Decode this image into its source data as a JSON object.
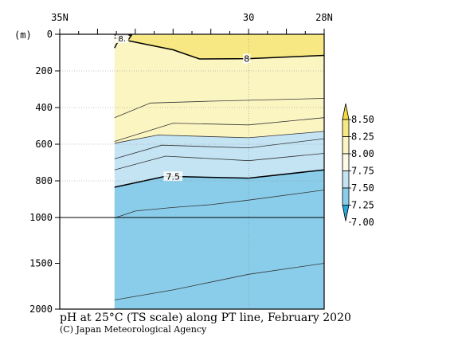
{
  "chart_data": {
    "type": "contour",
    "title": "pH at 25°C (TS scale) along PT line, February 2020",
    "credit": "(C) Japan Meteorological Agency",
    "y_unit": "(m)",
    "x_ticks": [
      {
        "value": 35,
        "label": "35N"
      },
      {
        "value": 30,
        "label": "30"
      },
      {
        "value": 28,
        "label": "28N"
      }
    ],
    "x_range": [
      35,
      28
    ],
    "y_ticks": [
      {
        "value": 0,
        "label": "0"
      },
      {
        "value": 200,
        "label": "200"
      },
      {
        "value": 400,
        "label": "400"
      },
      {
        "value": 600,
        "label": "600"
      },
      {
        "value": 800,
        "label": "800"
      },
      {
        "value": 1000,
        "label": "1000"
      },
      {
        "value": 1500,
        "label": "1500"
      },
      {
        "value": 2000,
        "label": "2000"
      }
    ],
    "y_scale": "piecewise: 0–1000 m upper section, 1000–2000 m compressed lower section",
    "data_lat_start": 33.55,
    "contour_levels": [
      7.0,
      7.25,
      7.5,
      7.75,
      8.0,
      8.25,
      8.5
    ],
    "colorbar": {
      "labels": [
        "8.50",
        "8.25",
        "8.00",
        "7.75",
        "7.50",
        "7.25",
        "7.00"
      ],
      "colors": [
        "#F2DC3E",
        "#F7E884",
        "#FBF5C2",
        "#FDFBE5",
        "#C4E4F4",
        "#8ACDEB",
        "#2AA7DA"
      ]
    },
    "fill_colors": {
      "above_8.00": "#F7E884",
      "7.75_to_8.00": "#FBF5C2",
      "7.50_to_7.75": "#C4E4F4",
      "below_7.50": "#8ACDEB"
    },
    "contours": [
      {
        "level": 8.0,
        "label": "8",
        "points": [
          [
            33.55,
            5
          ],
          [
            33.1,
            5
          ],
          [
            33.2,
            35
          ],
          [
            32.0,
            85
          ],
          [
            31.3,
            135
          ],
          [
            30.0,
            133
          ],
          [
            28.0,
            115
          ]
        ]
      },
      {
        "level": 8.0,
        "label": "8.",
        "points": [
          [
            33.55,
            20
          ],
          [
            33.4,
            25
          ],
          [
            33.5,
            55
          ],
          [
            33.55,
            75
          ]
        ]
      },
      {
        "level": 7.9,
        "points": [
          [
            33.55,
            455
          ],
          [
            32.6,
            375
          ],
          [
            31.0,
            365
          ],
          [
            28.0,
            350
          ]
        ]
      },
      {
        "level": 7.85,
        "points": [
          [
            33.55,
            585
          ],
          [
            32.0,
            485
          ],
          [
            30.0,
            495
          ],
          [
            28.0,
            455
          ]
        ]
      },
      {
        "level": 7.75,
        "points": [
          [
            33.55,
            595
          ],
          [
            32.4,
            550
          ],
          [
            30.0,
            565
          ],
          [
            28.0,
            530
          ]
        ]
      },
      {
        "level": 7.7,
        "points": [
          [
            33.55,
            680
          ],
          [
            32.3,
            605
          ],
          [
            30.0,
            620
          ],
          [
            28.0,
            570
          ]
        ]
      },
      {
        "level": 7.6,
        "points": [
          [
            33.55,
            740
          ],
          [
            32.2,
            665
          ],
          [
            30.0,
            690
          ],
          [
            28.0,
            650
          ]
        ]
      },
      {
        "level": 7.5,
        "label": "7.5",
        "points": [
          [
            33.55,
            835
          ],
          [
            32.2,
            775
          ],
          [
            30.0,
            785
          ],
          [
            28.0,
            740
          ]
        ]
      },
      {
        "level": 7.45,
        "points": [
          [
            33.55,
            1005
          ],
          [
            33.0,
            965
          ],
          [
            32.0,
            945
          ],
          [
            31.0,
            930
          ],
          [
            30.0,
            905
          ],
          [
            28.0,
            850
          ]
        ]
      },
      {
        "level": 7.4,
        "points": [
          [
            33.55,
            1900
          ],
          [
            32.0,
            1790
          ],
          [
            30.0,
            1620
          ],
          [
            28.0,
            1500
          ]
        ]
      }
    ]
  }
}
